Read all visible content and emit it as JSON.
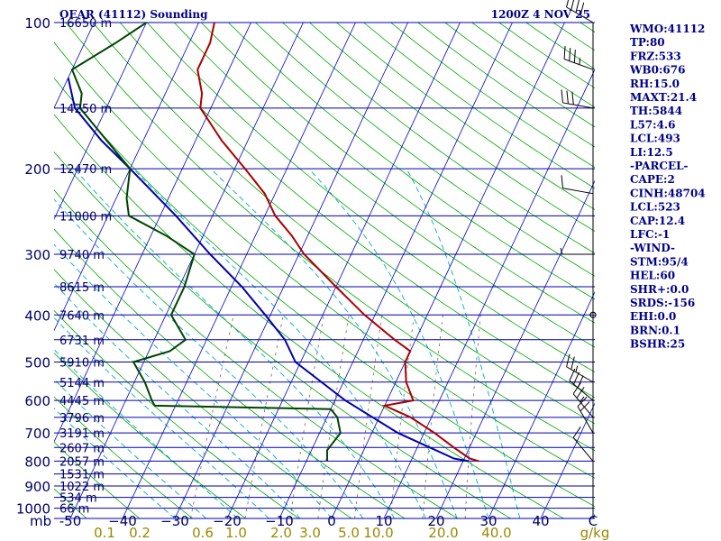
{
  "header": {
    "station": "OEAR (41112) Sounding",
    "time": "1200Z  4 NOV 25"
  },
  "indices": [
    "WMO:41112",
    "TP:80",
    "FRZ:533",
    "WB0:676",
    "RH:15.0",
    "MAXT:21.4",
    "TH:5844",
    "L57:4.6",
    "LCL:493",
    "LI:12.5",
    "-PARCEL-",
    "CAPE:2",
    "CINH:48704",
    "LCL:523",
    "CAP:12.4",
    "LFC:-1",
    "-WIND-",
    "STM:95/4",
    "HEL:60",
    "SHR+:0.0",
    "SRDS:-156",
    "EHI:0.0",
    "BRN:0.1",
    "BSHR:25"
  ],
  "colors": {
    "isobar": "#0000aa",
    "isotherm": "#0000cc",
    "dry_adiabat": "#00aa00",
    "moist_adiabat": "#00aacc",
    "mixing_ratio": "#776655",
    "temperature": "#aa0000",
    "dewpoint": "#004400",
    "parcel": "#0000aa",
    "wind": "#000000"
  },
  "chart_data": {
    "type": "line",
    "title": "OEAR (41112) Sounding",
    "x_axis_unit": "C",
    "y_axis_unit": "mb",
    "pressure_ticks": [
      100,
      200,
      300,
      400,
      500,
      600,
      700,
      800,
      900,
      1000
    ],
    "temperature_ticks": [
      -50,
      -40,
      -30,
      -20,
      -10,
      0,
      10,
      20,
      30,
      40
    ],
    "temperature_tick_labels": [
      "-50",
      "−40",
      "−30",
      "−20",
      "−10",
      "0",
      "10",
      "20",
      "30",
      "40"
    ],
    "mixing_ratio_axis_unit": "g/kg",
    "mixing_ratio_ticks": [
      0.1,
      0.2,
      0.6,
      1.0,
      2.0,
      3.0,
      5.0,
      10.0,
      20.0,
      40.0
    ],
    "mixing_ratio_tick_labels": [
      "0.1",
      "0.2",
      "0.6",
      "1.0",
      "2.0",
      "3.0",
      "5.0",
      "10.0",
      "20.0",
      "40.0"
    ],
    "height_levels": [
      {
        "p": 100,
        "label": "16650 m"
      },
      {
        "p": 150,
        "label": "14250 m"
      },
      {
        "p": 200,
        "label": "12470 m"
      },
      {
        "p": 250,
        "label": "11000 m"
      },
      {
        "p": 300,
        "label": "9740 m"
      },
      {
        "p": 350,
        "label": "8615 m"
      },
      {
        "p": 400,
        "label": "7640 m"
      },
      {
        "p": 450,
        "label": "6731 m"
      },
      {
        "p": 500,
        "label": "5910 m"
      },
      {
        "p": 550,
        "label": "5144 m"
      },
      {
        "p": 600,
        "label": "4445 m"
      },
      {
        "p": 650,
        "label": "3796 m"
      },
      {
        "p": 700,
        "label": "3191 m"
      },
      {
        "p": 750,
        "label": "2607 m"
      },
      {
        "p": 800,
        "label": "2057 m"
      },
      {
        "p": 850,
        "label": "1531 m"
      },
      {
        "p": 900,
        "label": "1022 m"
      },
      {
        "p": 950,
        "label": "534 m"
      },
      {
        "p": 1000,
        "label": "66 m"
      }
    ],
    "temperature": [
      {
        "p": 100,
        "t": -67
      },
      {
        "p": 110,
        "t": -66
      },
      {
        "p": 125,
        "t": -66
      },
      {
        "p": 140,
        "t": -63
      },
      {
        "p": 150,
        "t": -62
      },
      {
        "p": 175,
        "t": -55
      },
      {
        "p": 200,
        "t": -48
      },
      {
        "p": 225,
        "t": -42
      },
      {
        "p": 250,
        "t": -38
      },
      {
        "p": 275,
        "t": -33
      },
      {
        "p": 300,
        "t": -29
      },
      {
        "p": 350,
        "t": -20
      },
      {
        "p": 400,
        "t": -12
      },
      {
        "p": 450,
        "t": -4
      },
      {
        "p": 475,
        "t": 0
      },
      {
        "p": 500,
        "t": 0
      },
      {
        "p": 550,
        "t": 2
      },
      {
        "p": 600,
        "t": 5
      },
      {
        "p": 615,
        "t": 0
      },
      {
        "p": 650,
        "t": 6
      },
      {
        "p": 700,
        "t": 12
      },
      {
        "p": 750,
        "t": 17
      },
      {
        "p": 790,
        "t": 21
      },
      {
        "p": 800,
        "t": 23
      }
    ],
    "dewpoint": [
      {
        "p": 100,
        "t": -80
      },
      {
        "p": 110,
        "t": -84
      },
      {
        "p": 125,
        "t": -90
      },
      {
        "p": 140,
        "t": -86
      },
      {
        "p": 150,
        "t": -85
      },
      {
        "p": 175,
        "t": -77
      },
      {
        "p": 200,
        "t": -70
      },
      {
        "p": 230,
        "t": -68
      },
      {
        "p": 250,
        "t": -66
      },
      {
        "p": 275,
        "t": -57
      },
      {
        "p": 300,
        "t": -50
      },
      {
        "p": 350,
        "t": -49
      },
      {
        "p": 400,
        "t": -49
      },
      {
        "p": 450,
        "t": -44
      },
      {
        "p": 475,
        "t": -46
      },
      {
        "p": 500,
        "t": -52
      },
      {
        "p": 550,
        "t": -48
      },
      {
        "p": 600,
        "t": -45
      },
      {
        "p": 615,
        "t": -44
      },
      {
        "p": 625,
        "t": -10
      },
      {
        "p": 650,
        "t": -8
      },
      {
        "p": 700,
        "t": -6
      },
      {
        "p": 760,
        "t": -7
      },
      {
        "p": 800,
        "t": -6
      }
    ],
    "parcel": [
      {
        "p": 130,
        "t": -90
      },
      {
        "p": 150,
        "t": -86
      },
      {
        "p": 175,
        "t": -78
      },
      {
        "p": 200,
        "t": -70
      },
      {
        "p": 250,
        "t": -57
      },
      {
        "p": 300,
        "t": -47
      },
      {
        "p": 350,
        "t": -38
      },
      {
        "p": 400,
        "t": -31
      },
      {
        "p": 450,
        "t": -25
      },
      {
        "p": 500,
        "t": -21
      },
      {
        "p": 600,
        "t": -8
      },
      {
        "p": 700,
        "t": 5
      },
      {
        "p": 790,
        "t": 18
      },
      {
        "p": 800,
        "t": 21
      }
    ],
    "wind_barbs": [
      {
        "p": 100,
        "dir": 300,
        "spd": 40
      },
      {
        "p": 125,
        "dir": 290,
        "spd": 35
      },
      {
        "p": 150,
        "dir": 280,
        "spd": 30
      },
      {
        "p": 225,
        "dir": 280,
        "spd": 10
      },
      {
        "p": 300,
        "dir": 270,
        "spd": 5
      },
      {
        "p": 400,
        "dir": 0,
        "spd": 0
      },
      {
        "p": 550,
        "dir": 300,
        "spd": 25
      },
      {
        "p": 600,
        "dir": 310,
        "spd": 30
      },
      {
        "p": 650,
        "dir": 320,
        "spd": 25
      },
      {
        "p": 700,
        "dir": 330,
        "spd": 20
      },
      {
        "p": 800,
        "dir": 320,
        "spd": 10
      }
    ]
  }
}
